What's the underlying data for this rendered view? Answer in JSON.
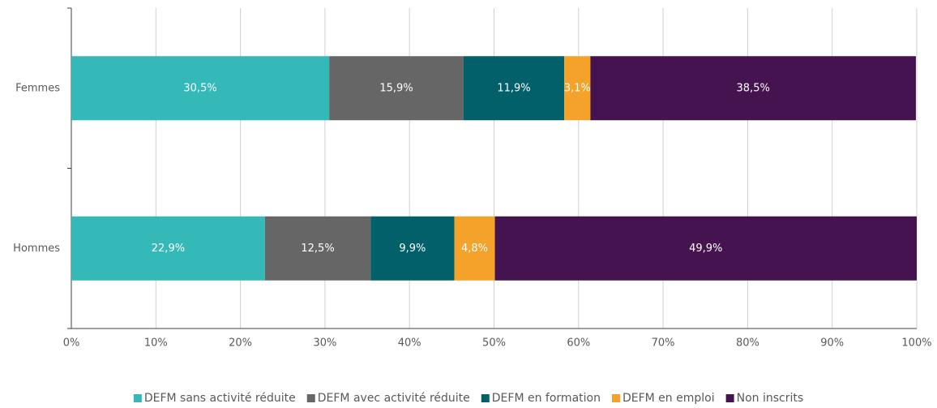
{
  "chart_data": {
    "type": "stacked_barh",
    "categories": [
      "Femmes",
      "Hommes"
    ],
    "series": [
      {
        "name": "DEFM sans activité réduite",
        "color": "#35b8b8",
        "values": [
          30.5,
          22.9
        ],
        "value_labels": [
          "30,5%",
          "22,9%"
        ]
      },
      {
        "name": "DEFM avec activité réduite",
        "color": "#666666",
        "values": [
          15.9,
          12.5
        ],
        "value_labels": [
          "15,9%",
          "12,5%"
        ]
      },
      {
        "name": "DEFM en formation",
        "color": "#02606b",
        "values": [
          11.9,
          9.9
        ],
        "value_labels": [
          "11,9%",
          "9,9%"
        ]
      },
      {
        "name": "DEFM en emploi",
        "color": "#f4a22a",
        "values": [
          3.1,
          4.8
        ],
        "value_labels": [
          "3,1%",
          "4,8%"
        ]
      },
      {
        "name": "Non inscrits",
        "color": "#45134f",
        "values": [
          38.5,
          49.9
        ],
        "value_labels": [
          "38,5%",
          "49,9%"
        ]
      }
    ],
    "xlim": [
      0,
      100
    ],
    "xticks": [
      {
        "value": 0,
        "label": "0%"
      },
      {
        "value": 10,
        "label": "10%"
      },
      {
        "value": 20,
        "label": "20%"
      },
      {
        "value": 30,
        "label": "30%"
      },
      {
        "value": 40,
        "label": "40%"
      },
      {
        "value": 50,
        "label": "50%"
      },
      {
        "value": 60,
        "label": "60%"
      },
      {
        "value": 70,
        "label": "70%"
      },
      {
        "value": 80,
        "label": "80%"
      },
      {
        "value": 90,
        "label": "90%"
      },
      {
        "value": 100,
        "label": "100%"
      }
    ],
    "grid": true,
    "legend": "bottom"
  }
}
